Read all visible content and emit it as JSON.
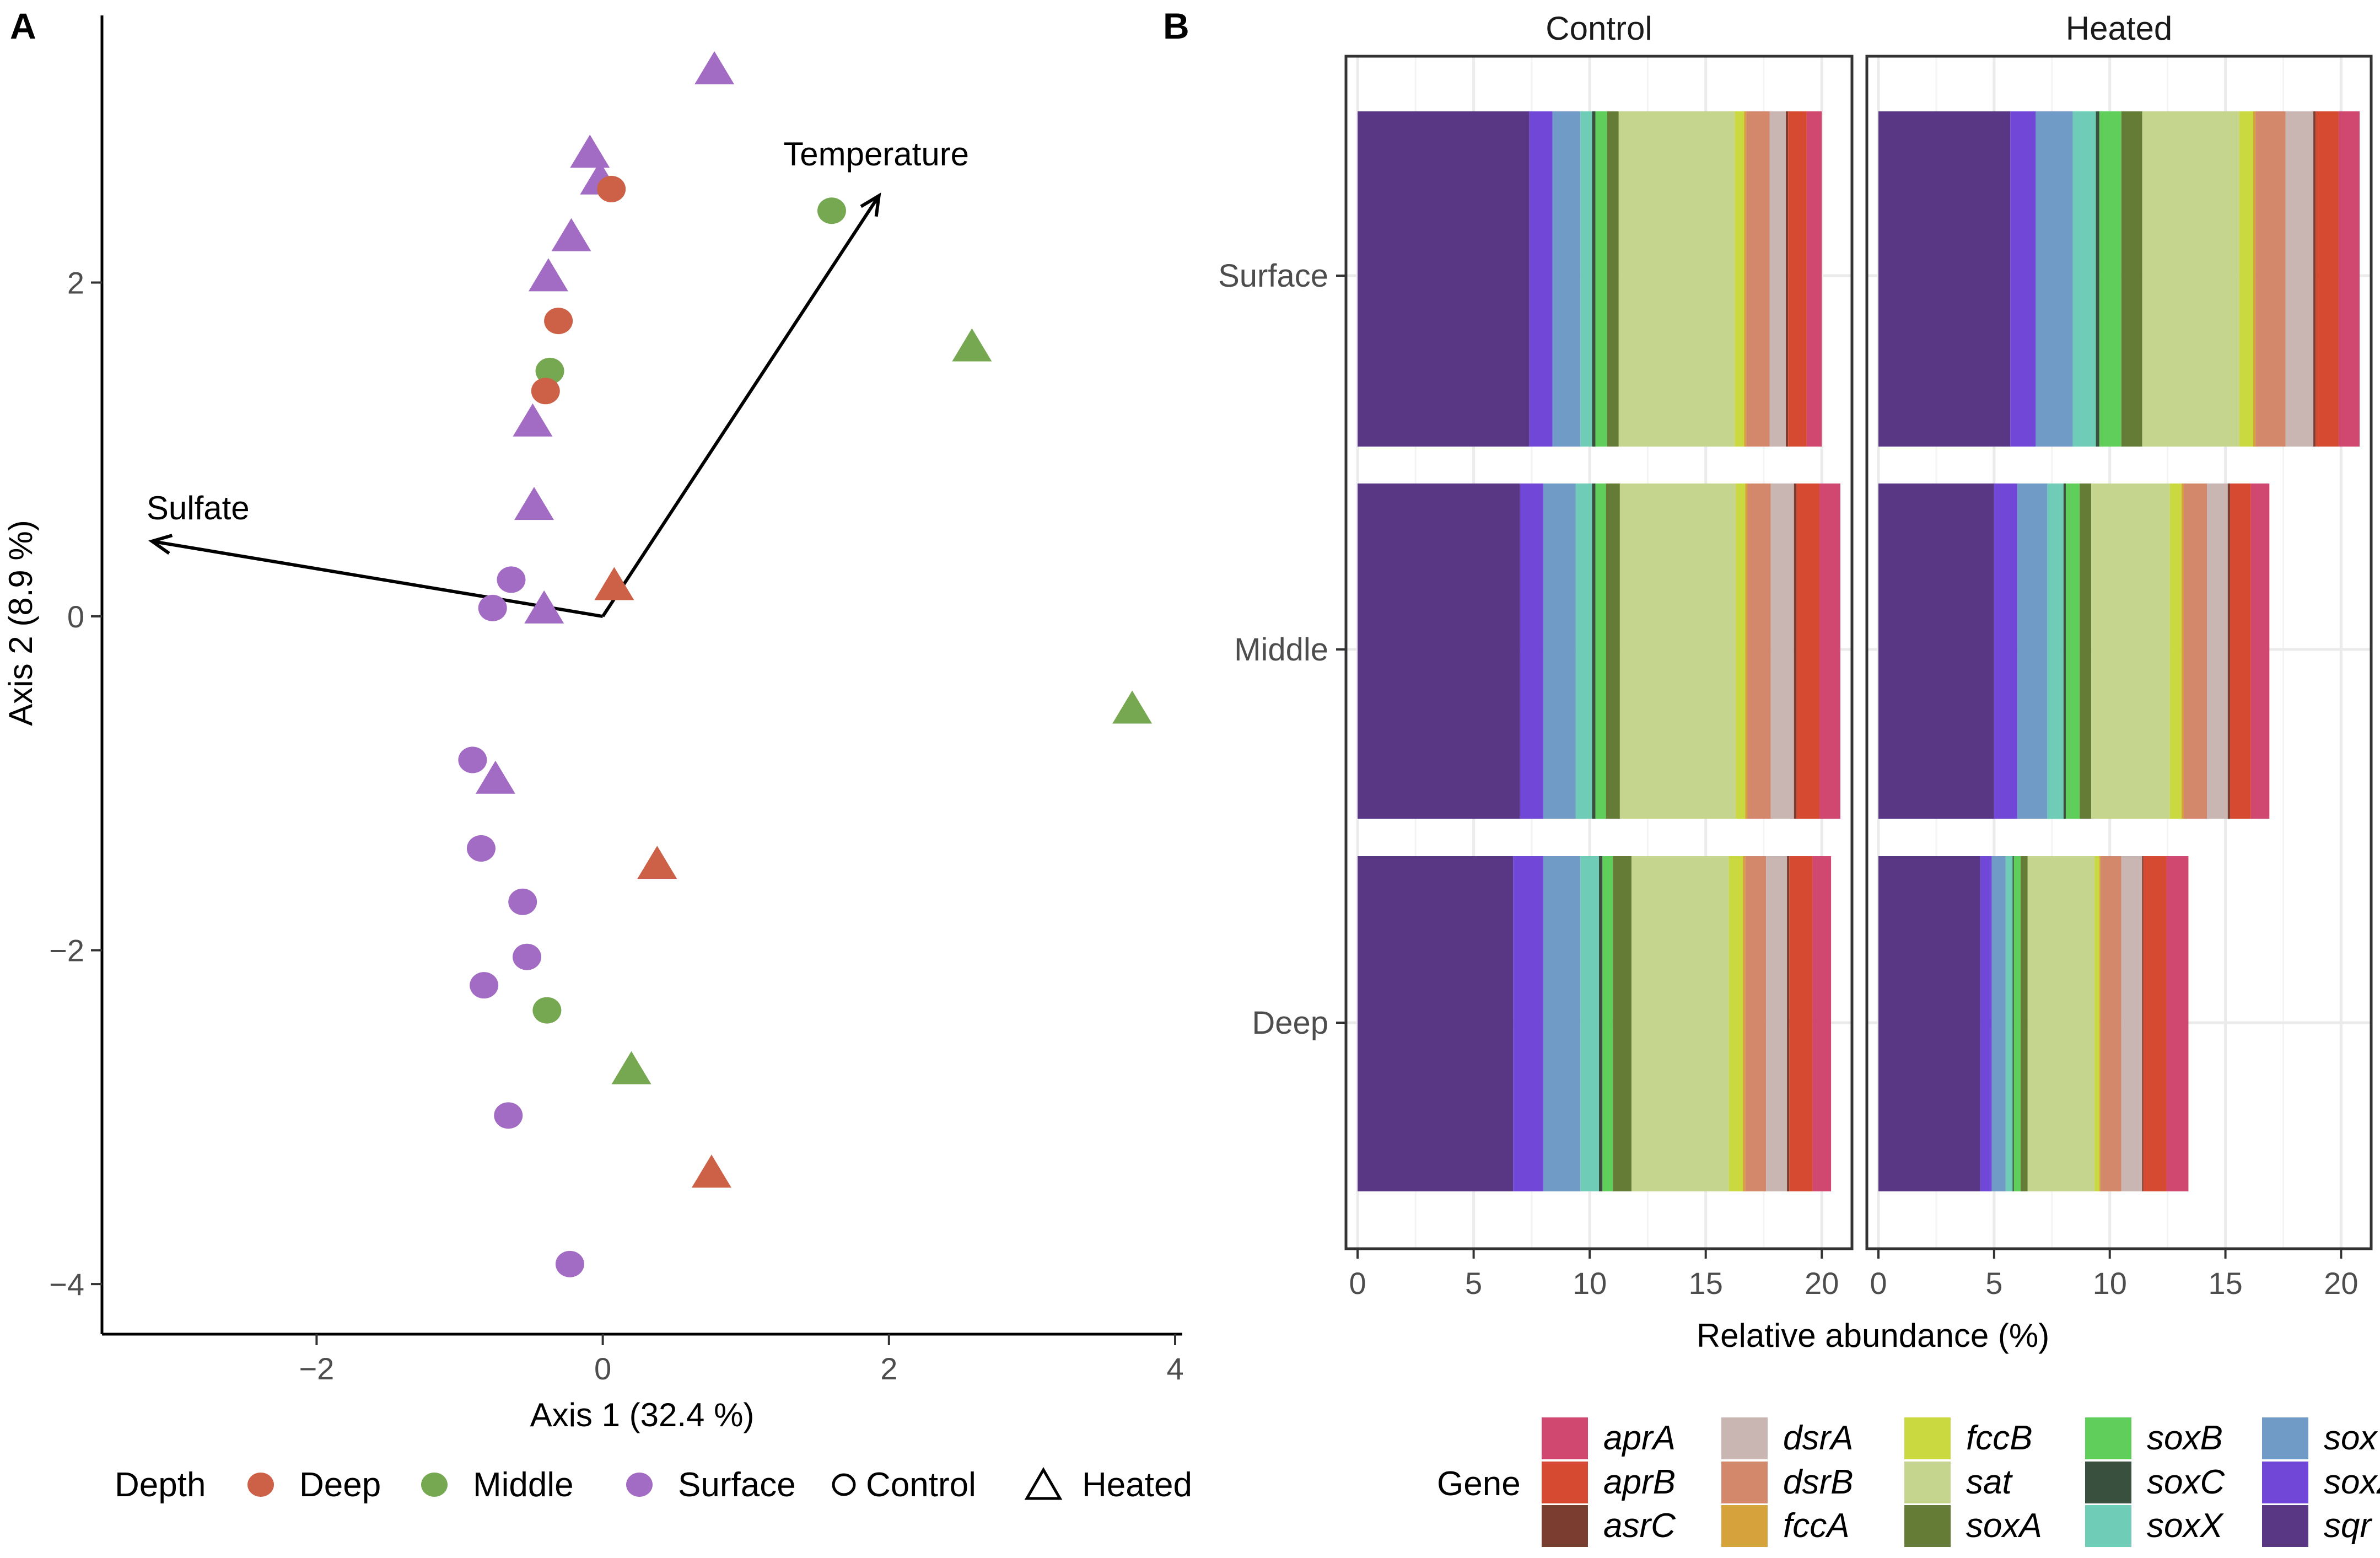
{
  "chart_data": [
    {
      "panel": "A",
      "type": "scatter",
      "xlabel": "Axis 1 (32.4 %)",
      "ylabel": "Axis 2 (8.9 %)",
      "xlim": [
        -3.5,
        4.05
      ],
      "ylim": [
        -4.3,
        3.6
      ],
      "xticks": [
        -2,
        0,
        2,
        4
      ],
      "yticks": [
        -4,
        -2,
        0,
        2
      ],
      "xtick_labels": [
        "−2",
        "0",
        "2",
        "4"
      ],
      "ytick_labels": [
        "−4",
        "−2",
        "0",
        "2"
      ],
      "depth_colors": {
        "Deep": "#cc6147",
        "Middle": "#76a851",
        "Surface": "#a26bc4"
      },
      "points": [
        {
          "x": 0.78,
          "y": 3.28,
          "depth": "Surface",
          "treatment": "Heated"
        },
        {
          "x": -0.09,
          "y": 2.78,
          "depth": "Surface",
          "treatment": "Heated"
        },
        {
          "x": -0.02,
          "y": 2.62,
          "depth": "Surface",
          "treatment": "Heated"
        },
        {
          "x": 0.06,
          "y": 2.56,
          "depth": "Deep",
          "treatment": "Control"
        },
        {
          "x": 1.6,
          "y": 2.43,
          "depth": "Middle",
          "treatment": "Control"
        },
        {
          "x": -0.22,
          "y": 2.28,
          "depth": "Surface",
          "treatment": "Heated"
        },
        {
          "x": -0.38,
          "y": 2.04,
          "depth": "Surface",
          "treatment": "Heated"
        },
        {
          "x": -0.31,
          "y": 1.77,
          "depth": "Deep",
          "treatment": "Control"
        },
        {
          "x": 2.58,
          "y": 1.62,
          "depth": "Middle",
          "treatment": "Heated"
        },
        {
          "x": -0.37,
          "y": 1.47,
          "depth": "Middle",
          "treatment": "Control"
        },
        {
          "x": -0.4,
          "y": 1.35,
          "depth": "Deep",
          "treatment": "Control"
        },
        {
          "x": -0.49,
          "y": 1.17,
          "depth": "Surface",
          "treatment": "Heated"
        },
        {
          "x": -0.48,
          "y": 0.67,
          "depth": "Surface",
          "treatment": "Heated"
        },
        {
          "x": -0.64,
          "y": 0.22,
          "depth": "Surface",
          "treatment": "Control"
        },
        {
          "x": 0.08,
          "y": 0.19,
          "depth": "Deep",
          "treatment": "Heated"
        },
        {
          "x": -0.77,
          "y": 0.05,
          "depth": "Surface",
          "treatment": "Control"
        },
        {
          "x": -0.41,
          "y": 0.05,
          "depth": "Surface",
          "treatment": "Heated"
        },
        {
          "x": 3.7,
          "y": -0.55,
          "depth": "Middle",
          "treatment": "Heated"
        },
        {
          "x": -0.91,
          "y": -0.86,
          "depth": "Surface",
          "treatment": "Control"
        },
        {
          "x": -0.75,
          "y": -0.97,
          "depth": "Surface",
          "treatment": "Heated"
        },
        {
          "x": -0.85,
          "y": -1.39,
          "depth": "Surface",
          "treatment": "Control"
        },
        {
          "x": 0.38,
          "y": -1.48,
          "depth": "Deep",
          "treatment": "Heated"
        },
        {
          "x": -0.56,
          "y": -1.71,
          "depth": "Surface",
          "treatment": "Control"
        },
        {
          "x": -0.53,
          "y": -2.04,
          "depth": "Surface",
          "treatment": "Control"
        },
        {
          "x": -0.83,
          "y": -2.21,
          "depth": "Surface",
          "treatment": "Control"
        },
        {
          "x": -0.39,
          "y": -2.36,
          "depth": "Middle",
          "treatment": "Control"
        },
        {
          "x": 0.2,
          "y": -2.71,
          "depth": "Middle",
          "treatment": "Heated"
        },
        {
          "x": -0.66,
          "y": -2.99,
          "depth": "Surface",
          "treatment": "Control"
        },
        {
          "x": 0.76,
          "y": -3.33,
          "depth": "Deep",
          "treatment": "Heated"
        },
        {
          "x": -0.23,
          "y": -3.88,
          "depth": "Surface",
          "treatment": "Control"
        }
      ],
      "vectors": [
        {
          "label": "Sulfate",
          "x": -3.15,
          "y": 0.45
        },
        {
          "label": "Temperature",
          "x": 1.93,
          "y": 2.52
        }
      ],
      "legend": {
        "title": "Depth",
        "items": [
          "Deep",
          "Middle",
          "Surface",
          "Control",
          "Heated"
        ]
      }
    },
    {
      "panel": "B",
      "type": "bar",
      "orientation": "horizontal",
      "stacked": true,
      "xlabel": "Relative abundance (%)",
      "ylabel": "",
      "xlim": [
        -0.5,
        21.3
      ],
      "xticks": [
        0,
        5,
        10,
        15,
        20
      ],
      "xtick_labels": [
        "0",
        "5",
        "10",
        "15",
        "20"
      ],
      "facets": [
        "Control",
        "Heated"
      ],
      "categories": [
        "Surface",
        "Middle",
        "Deep"
      ],
      "stack_order": [
        "sqr",
        "soxZ",
        "soxY",
        "soxX",
        "soxC",
        "soxB",
        "soxA",
        "sat",
        "fccB",
        "fccA",
        "dsrB",
        "dsrA",
        "asrC",
        "aprB",
        "aprA"
      ],
      "gene_colors": {
        "aprA": "#d0476f",
        "aprB": "#d64a32",
        "asrC": "#7a3d2f",
        "dsrA": "#c9b6b2",
        "dsrB": "#d3876b",
        "fccA": "#d6a23c",
        "fccB": "#c9d93f",
        "sat": "#c5d58e",
        "soxA": "#647c35",
        "soxB": "#5fce5b",
        "soxC": "#39503f",
        "soxX": "#6fcdb7",
        "soxY": "#6f9bc6",
        "soxZ": "#7047d6",
        "sqr": "#5a3785"
      },
      "series": {
        "Control": {
          "Surface": {
            "sqr": 7.4,
            "soxZ": 1.0,
            "soxY": 1.2,
            "soxX": 0.5,
            "soxC": 0.15,
            "soxB": 0.5,
            "soxA": 0.5,
            "sat": 5.0,
            "fccB": 0.4,
            "fccA": 0.1,
            "dsrB": 1.0,
            "dsrA": 0.7,
            "asrC": 0.1,
            "aprB": 0.8,
            "aprA": 0.65
          },
          "Middle": {
            "sqr": 7.0,
            "soxZ": 1.0,
            "soxY": 1.4,
            "soxX": 0.7,
            "soxC": 0.15,
            "soxB": 0.45,
            "soxA": 0.6,
            "sat": 5.0,
            "fccB": 0.4,
            "fccA": 0.1,
            "dsrB": 1.0,
            "dsrA": 1.0,
            "asrC": 0.1,
            "aprB": 1.0,
            "aprA": 0.9
          },
          "Deep": {
            "sqr": 6.7,
            "soxZ": 1.3,
            "soxY": 1.6,
            "soxX": 0.8,
            "soxC": 0.15,
            "soxB": 0.45,
            "soxA": 0.8,
            "sat": 4.2,
            "fccB": 0.6,
            "fccA": 0.1,
            "dsrB": 0.9,
            "dsrA": 0.9,
            "asrC": 0.1,
            "aprB": 1.0,
            "aprA": 0.8
          }
        },
        "Heated": {
          "Surface": {
            "sqr": 5.7,
            "soxZ": 1.1,
            "soxY": 1.6,
            "soxX": 1.0,
            "soxC": 0.15,
            "soxB": 0.95,
            "soxA": 0.9,
            "sat": 4.2,
            "fccB": 0.6,
            "fccA": 0.1,
            "dsrB": 1.3,
            "dsrA": 1.2,
            "asrC": 0.1,
            "aprB": 1.0,
            "aprA": 0.9
          },
          "Middle": {
            "sqr": 5.0,
            "soxZ": 1.0,
            "soxY": 1.3,
            "soxX": 0.7,
            "soxC": 0.1,
            "soxB": 0.6,
            "soxA": 0.5,
            "sat": 3.4,
            "fccB": 0.5,
            "fccA": 0.1,
            "dsrB": 1.0,
            "dsrA": 0.9,
            "asrC": 0.1,
            "aprB": 0.9,
            "aprA": 0.8
          },
          "Deep": {
            "sqr": 4.4,
            "soxZ": 0.5,
            "soxY": 0.6,
            "soxX": 0.3,
            "soxC": 0.05,
            "soxB": 0.3,
            "soxA": 0.3,
            "sat": 2.9,
            "fccB": 0.2,
            "fccA": 0.05,
            "dsrB": 0.9,
            "dsrA": 0.9,
            "asrC": 0.05,
            "aprB": 1.0,
            "aprA": 0.95
          }
        }
      },
      "legend": {
        "title": "Gene",
        "items": [
          "aprA",
          "aprB",
          "asrC",
          "dsrA",
          "dsrB",
          "fccA",
          "fccB",
          "sat",
          "soxA",
          "soxB",
          "soxC",
          "soxX",
          "soxY",
          "soxZ",
          "sqr"
        ]
      }
    }
  ],
  "labels": {
    "panel_a": "A",
    "panel_b": "B"
  }
}
